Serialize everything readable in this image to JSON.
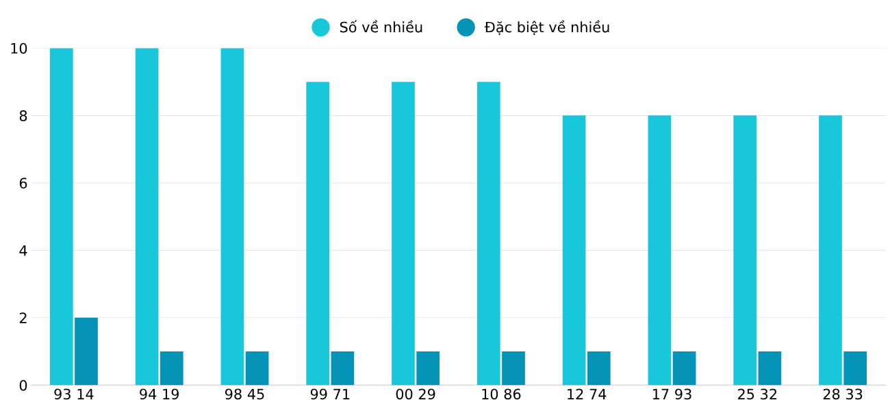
{
  "chart_data": {
    "type": "bar",
    "categories": [
      "93 14",
      "94 19",
      "98 45",
      "99 71",
      "00 29",
      "10 86",
      "12 74",
      "17 93",
      "25 32",
      "28 33"
    ],
    "series": [
      {
        "name": "Số về nhiều",
        "color": "#19c7db",
        "values": [
          10,
          10,
          10,
          9,
          9,
          9,
          8,
          8,
          8,
          8
        ]
      },
      {
        "name": "Đặc biệt về nhiều",
        "color": "#0593b8",
        "values": [
          2,
          1,
          1,
          1,
          1,
          1,
          1,
          1,
          1,
          1
        ]
      }
    ],
    "ylim": [
      0,
      10
    ],
    "yticks": [
      0,
      2,
      4,
      6,
      8,
      10
    ],
    "grid": "y",
    "legend": "top"
  }
}
